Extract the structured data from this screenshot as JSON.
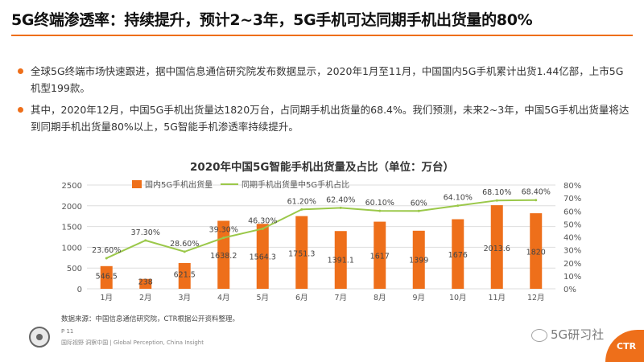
{
  "slide": {
    "title": "5G终端渗透率：持续提升，预计2~3年，5G手机可达同期手机出货量的80%",
    "bullets": [
      "全球5G终端市场快速跟进，据中国信息通信研究院发布数据显示，2020年1月至11月，中国国内5G手机累计出货1.44亿部，上市5G机型199款。",
      "其中，2020年12月，中国5G手机出货量达1820万台，占同期手机出货量的68.4%。我们预测，未来2~3年，中国5G手机出货量将达到同期手机出货量80%以上，5G智能手机渗透率持续提升。"
    ],
    "source": "数据来源：中国信息通信研究院，CTR根据公开资料整理。",
    "page": "P 11",
    "tagline": "国际视野  洞察中国 | Global Perception, China Insight",
    "wechat": "5G研习社",
    "logo_text": "CTR"
  },
  "colors": {
    "accent": "#ee6f1a",
    "bar": "#ee6f1a",
    "line": "#9bc84a"
  },
  "chart_data": {
    "type": "bar",
    "title": "2020年中国5G智能手机出货量及占比（单位：万台）",
    "categories": [
      "1月",
      "2月",
      "3月",
      "4月",
      "5月",
      "6月",
      "7月",
      "8月",
      "9月",
      "10月",
      "11月",
      "12月"
    ],
    "series": [
      {
        "name": "国内5G手机出货量",
        "type": "bar",
        "axis": "left",
        "values": [
          546.5,
          238,
          621.5,
          1638.2,
          1564.3,
          1751.3,
          1391.1,
          1617,
          1399,
          1676,
          2013.6,
          1820
        ],
        "labels": [
          "546.5",
          "238",
          "621.5",
          "1638.2",
          "1564.3",
          "1751.3",
          "1391.1",
          "1617",
          "1399",
          "1676",
          "2013.6",
          "1820"
        ]
      },
      {
        "name": "同期手机出货量中5G手机占比",
        "type": "line",
        "axis": "right",
        "values": [
          23.6,
          37.3,
          28.6,
          39.3,
          46.3,
          61.2,
          62.4,
          60.1,
          60,
          64.1,
          68.1,
          68.4
        ],
        "labels": [
          "23.60%",
          "37.30%",
          "28.60%",
          "39.30%",
          "46.30%",
          "61.20%",
          "62.40%",
          "60.10%",
          "60%",
          "64.10%",
          "68.10%",
          "68.40%"
        ]
      }
    ],
    "y_left": {
      "lim": [
        0,
        2500
      ],
      "ticks": [
        0,
        500,
        1000,
        1500,
        2000,
        2500
      ],
      "tick_labels": [
        "0",
        "500",
        "1000",
        "1500",
        "2000",
        "2500"
      ]
    },
    "y_right": {
      "lim": [
        0,
        80
      ],
      "ticks": [
        0,
        10,
        20,
        30,
        40,
        50,
        60,
        70,
        80
      ],
      "tick_labels": [
        "0%",
        "10%",
        "20%",
        "30%",
        "40%",
        "50%",
        "60%",
        "70%",
        "80%"
      ]
    },
    "legend": "top",
    "grid": true
  }
}
